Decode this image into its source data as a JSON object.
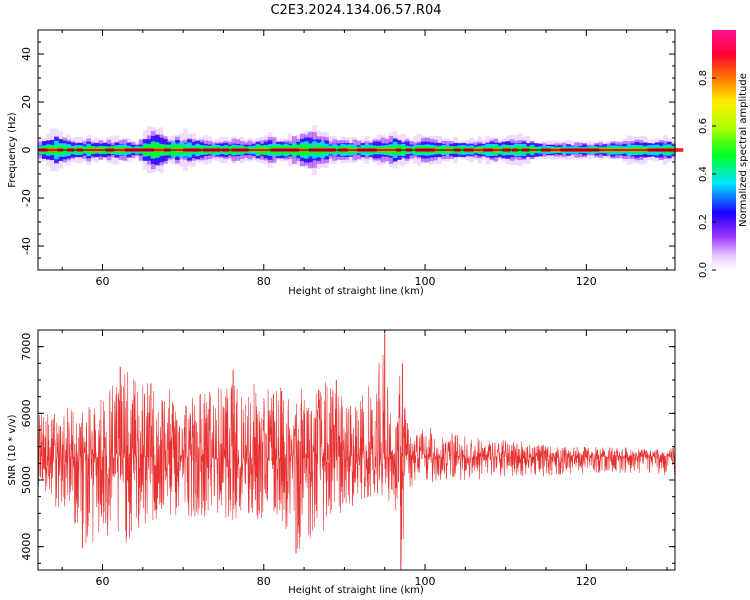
{
  "title": "C2E3.2024.134.06.57.R04",
  "chart_data": [
    {
      "type": "heatmap",
      "xlabel": "Height of straight line (km)",
      "ylabel": "Frequency (Hz)",
      "xlim": [
        52,
        131
      ],
      "ylim": [
        -50,
        50
      ],
      "xticks": [
        60,
        80,
        100,
        120
      ],
      "yticks": [
        -40,
        -20,
        0,
        20,
        40
      ],
      "colorbar": {
        "label": "Normalized spectral amplitude",
        "ticks": [
          "0.0",
          "0.2",
          "0.4",
          "0.6",
          "0.8"
        ],
        "tick_values": [
          0.0,
          0.2,
          0.4,
          0.6,
          0.8
        ],
        "range": [
          0.0,
          1.0
        ]
      },
      "center_line_hz": 0,
      "band_halfwidth_hz": [
        [
          52,
          2.5
        ],
        [
          54,
          4.5
        ],
        [
          56,
          2.5
        ],
        [
          58,
          3.0
        ],
        [
          60,
          2.5
        ],
        [
          62,
          3.0
        ],
        [
          64,
          2.0
        ],
        [
          66,
          5.5
        ],
        [
          68,
          3.5
        ],
        [
          70,
          4.0
        ],
        [
          72,
          3.0
        ],
        [
          74,
          2.5
        ],
        [
          76,
          3.0
        ],
        [
          78,
          2.5
        ],
        [
          80,
          3.5
        ],
        [
          82,
          3.0
        ],
        [
          84,
          4.0
        ],
        [
          86,
          5.0
        ],
        [
          88,
          3.0
        ],
        [
          90,
          3.0
        ],
        [
          92,
          2.5
        ],
        [
          94,
          3.0
        ],
        [
          96,
          4.0
        ],
        [
          98,
          2.5
        ],
        [
          100,
          3.5
        ],
        [
          102,
          2.5
        ],
        [
          104,
          2.5
        ],
        [
          106,
          2.5
        ],
        [
          108,
          3.0
        ],
        [
          110,
          3.0
        ],
        [
          112,
          3.0
        ],
        [
          114,
          2.0
        ],
        [
          116,
          2.0
        ],
        [
          118,
          2.0
        ],
        [
          120,
          2.0
        ],
        [
          122,
          2.0
        ],
        [
          124,
          2.5
        ],
        [
          126,
          3.0
        ],
        [
          128,
          2.5
        ],
        [
          130,
          3.0
        ]
      ]
    },
    {
      "type": "line",
      "xlabel": "Height of straight line (km)",
      "ylabel": "SNR (10 * v/v)",
      "xlim": [
        52,
        131
      ],
      "ylim": [
        3650,
        7250
      ],
      "xticks": [
        60,
        80,
        100,
        120
      ],
      "yticks": [
        4000,
        5000,
        6000,
        7000
      ],
      "color": "#e83030",
      "baseline": 5350,
      "envelope": [
        {
          "x": 52,
          "max": 6000,
          "min": 4750
        },
        {
          "x": 56,
          "max": 6150,
          "min": 4400
        },
        {
          "x": 58,
          "max": 6050,
          "min": 4000
        },
        {
          "x": 62,
          "max": 6700,
          "min": 3950
        },
        {
          "x": 66,
          "max": 6450,
          "min": 4300
        },
        {
          "x": 70,
          "max": 6300,
          "min": 4450
        },
        {
          "x": 74,
          "max": 6400,
          "min": 4450
        },
        {
          "x": 78,
          "max": 6500,
          "min": 4350
        },
        {
          "x": 82,
          "max": 6400,
          "min": 4400
        },
        {
          "x": 84,
          "max": 6350,
          "min": 3900
        },
        {
          "x": 88,
          "max": 6500,
          "min": 4300
        },
        {
          "x": 91,
          "max": 6150,
          "min": 4600
        },
        {
          "x": 94,
          "max": 6600,
          "min": 4800
        },
        {
          "x": 95,
          "max": 7200,
          "min": 4700
        },
        {
          "x": 96,
          "max": 5600,
          "min": 4650
        },
        {
          "x": 97,
          "max": 6750,
          "min": 3650
        },
        {
          "x": 98,
          "max": 5700,
          "min": 4850
        },
        {
          "x": 100,
          "max": 5800,
          "min": 4950
        },
        {
          "x": 104,
          "max": 5700,
          "min": 5000
        },
        {
          "x": 108,
          "max": 5600,
          "min": 5000
        },
        {
          "x": 112,
          "max": 5600,
          "min": 5050
        },
        {
          "x": 116,
          "max": 5500,
          "min": 5050
        },
        {
          "x": 120,
          "max": 5500,
          "min": 5100
        },
        {
          "x": 124,
          "max": 5500,
          "min": 5100
        },
        {
          "x": 128,
          "max": 5450,
          "min": 5100
        },
        {
          "x": 131,
          "max": 5500,
          "min": 5050
        }
      ],
      "spikes": [
        {
          "x": 62.2,
          "y": 6700
        },
        {
          "x": 84.0,
          "y": 3900
        },
        {
          "x": 95.0,
          "y": 7200
        },
        {
          "x": 97.0,
          "y": 3650
        },
        {
          "x": 97.2,
          "y": 6750
        },
        {
          "x": 57.5,
          "y": 3980
        },
        {
          "x": 66.0,
          "y": 6450
        },
        {
          "x": 76.2,
          "y": 6650
        },
        {
          "x": 89.0,
          "y": 6500
        }
      ]
    }
  ]
}
